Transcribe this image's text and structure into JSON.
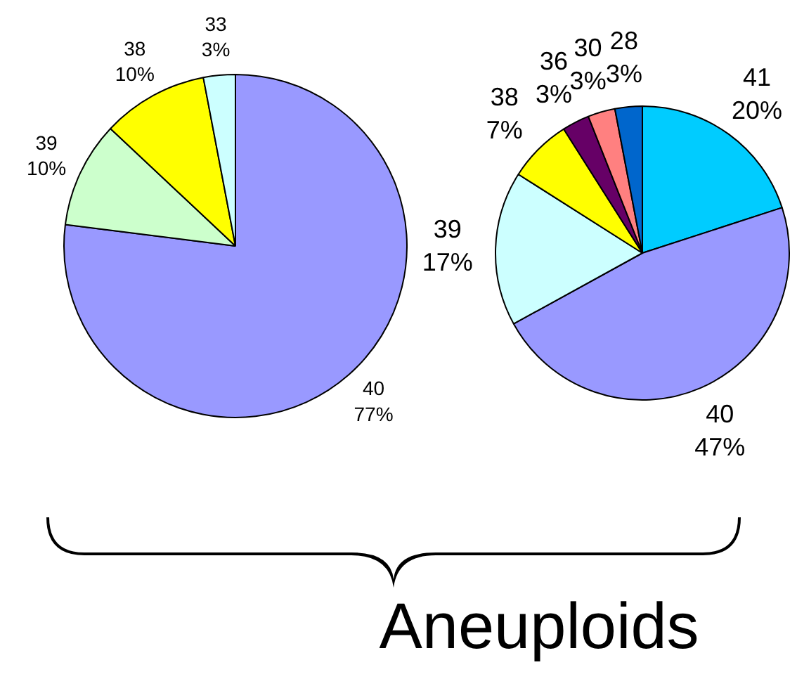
{
  "chart_data": [
    {
      "type": "pie",
      "categories": [
        "40",
        "39",
        "38",
        "33"
      ],
      "values": [
        77,
        10,
        10,
        3
      ],
      "value_labels": [
        "77%",
        "10%",
        "10%",
        "3%"
      ],
      "colors": [
        "#9999ff",
        "#ccffcc",
        "#ffff00",
        "#ccffff"
      ],
      "legend": false
    },
    {
      "type": "pie",
      "categories": [
        "41",
        "40",
        "39",
        "38",
        "36",
        "30",
        "28"
      ],
      "values": [
        20,
        47,
        17,
        7,
        3,
        3,
        3
      ],
      "value_labels": [
        "20%",
        "47%",
        "17%",
        "7%",
        "3%",
        "3%",
        "3%"
      ],
      "colors": [
        "#00ccff",
        "#9999ff",
        "#ccffff",
        "#ffff00",
        "#660066",
        "#ff8080",
        "#0066cc"
      ],
      "legend": false,
      "annotations": [
        "Aneuploids"
      ]
    }
  ]
}
